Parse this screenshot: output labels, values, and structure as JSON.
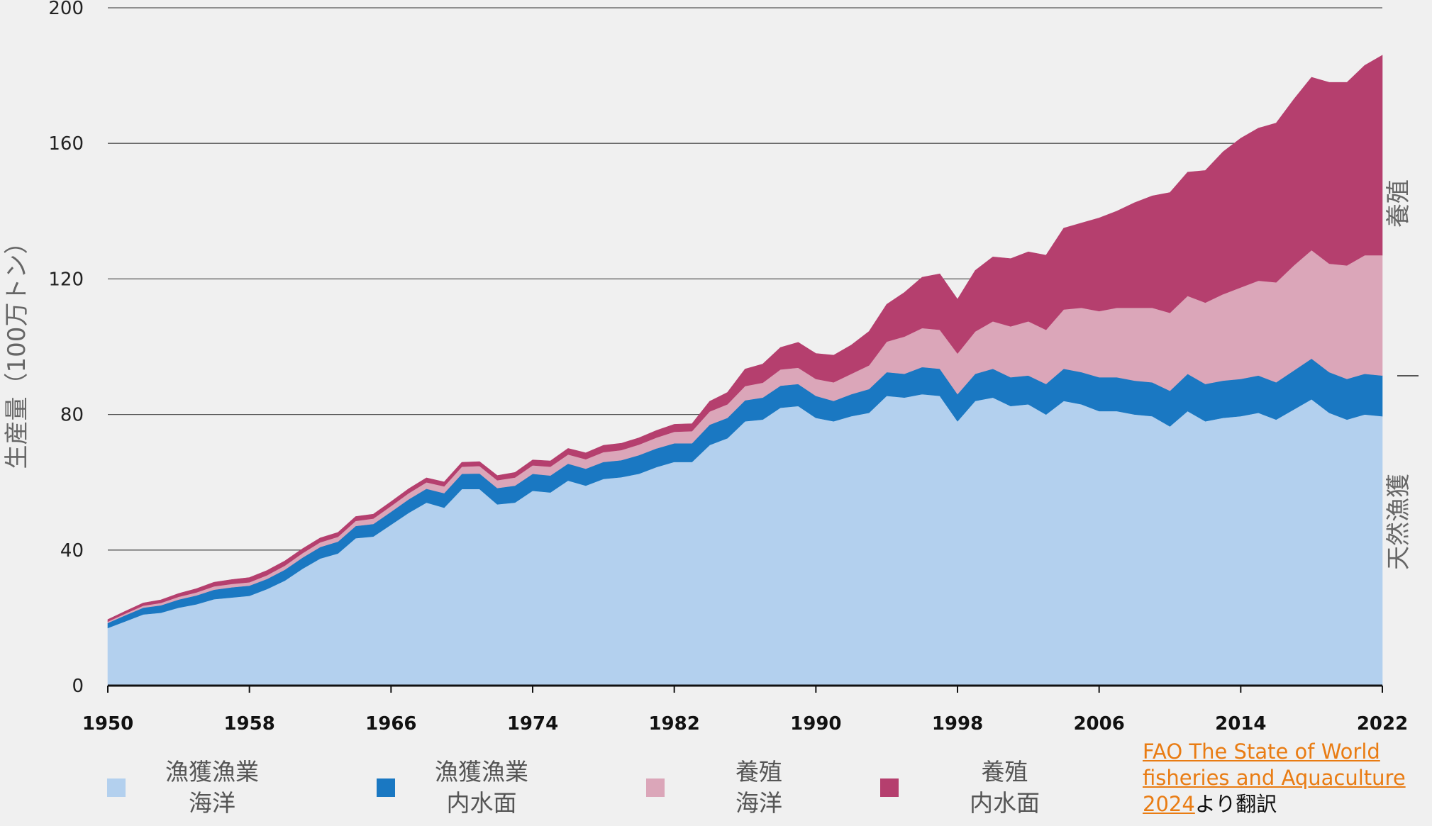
{
  "chart_data": {
    "type": "area",
    "stacked": true,
    "ylabel": "生産量（100万トン）",
    "ylim": [
      0,
      200
    ],
    "yticks": [
      "0",
      "40",
      "80",
      "120",
      "160",
      "200"
    ],
    "xlim": [
      1950,
      2022
    ],
    "xticks": [
      "1950",
      "1958",
      "1966",
      "1974",
      "1982",
      "1990",
      "1998",
      "2006",
      "2014",
      "2022"
    ],
    "grid": true,
    "side_labels": {
      "upper": "養殖",
      "lower": "天然漁獲"
    },
    "x": [
      1950,
      1951,
      1952,
      1953,
      1954,
      1955,
      1956,
      1957,
      1958,
      1959,
      1960,
      1961,
      1962,
      1963,
      1964,
      1965,
      1966,
      1967,
      1968,
      1969,
      1970,
      1971,
      1972,
      1973,
      1974,
      1975,
      1976,
      1977,
      1978,
      1979,
      1980,
      1981,
      1982,
      1983,
      1984,
      1985,
      1986,
      1987,
      1988,
      1989,
      1990,
      1991,
      1992,
      1993,
      1994,
      1995,
      1996,
      1997,
      1998,
      1999,
      2000,
      2001,
      2002,
      2003,
      2004,
      2005,
      2006,
      2007,
      2008,
      2009,
      2010,
      2011,
      2012,
      2013,
      2014,
      2015,
      2016,
      2017,
      2018,
      2019,
      2020,
      2021,
      2022
    ],
    "series": [
      {
        "name": "漁獲漁業 海洋",
        "color": "#b3d0ee",
        "values": [
          17,
          19,
          21,
          21.5,
          23,
          24,
          25.5,
          26,
          26.5,
          28.5,
          31,
          34.5,
          37.5,
          39,
          43.5,
          44,
          47.5,
          51,
          54,
          52.5,
          58,
          58,
          53.5,
          54,
          57.5,
          57,
          60.5,
          59,
          61,
          61.5,
          62.5,
          64.5,
          66,
          66,
          71,
          73,
          78,
          78.5,
          82,
          82.5,
          79,
          78,
          79.5,
          80.5,
          85.5,
          85,
          86,
          85.5,
          78,
          84,
          85,
          82.5,
          83,
          80,
          84,
          83,
          81,
          81,
          80,
          79.5,
          76.5,
          81,
          78,
          79,
          79.5,
          80.5,
          78.5,
          81.5,
          84.5,
          80.5,
          78.5,
          80,
          79.5
        ]
      },
      {
        "name": "漁獲漁業 内水面",
        "color": "#1a78c2",
        "values": [
          1.5,
          1.8,
          2,
          2.2,
          2.4,
          2.6,
          2.8,
          3,
          3,
          3,
          3.2,
          3.3,
          3.4,
          3.5,
          3.6,
          3.7,
          3.8,
          4,
          4.1,
          4.3,
          4.5,
          4.6,
          4.8,
          5,
          5,
          5,
          5,
          5,
          5,
          5,
          5.5,
          5.5,
          5.5,
          5.5,
          6,
          6,
          6.2,
          6.5,
          6.5,
          6.5,
          6.5,
          6,
          6.5,
          7,
          7,
          7,
          8,
          8,
          8,
          8,
          8.5,
          8.5,
          8.5,
          9,
          9.5,
          9.5,
          10,
          10,
          10,
          10,
          10.5,
          11,
          11,
          11,
          11,
          11,
          11,
          11.5,
          12,
          12,
          12,
          12,
          12
        ]
      },
      {
        "name": "養殖 海洋",
        "color": "#dba6b9",
        "values": [
          0.4,
          0.5,
          0.6,
          0.7,
          0.8,
          0.9,
          1,
          1,
          1,
          1.1,
          1.2,
          1.3,
          1.4,
          1.4,
          1.5,
          1.6,
          1.7,
          1.8,
          1.9,
          2,
          2.1,
          2.2,
          2.3,
          2.4,
          2.5,
          2.6,
          2.7,
          2.8,
          2.9,
          3,
          3.1,
          3.2,
          3.4,
          3.6,
          3.9,
          4,
          4.2,
          4.4,
          4.8,
          4.8,
          5,
          5.5,
          6,
          7,
          9,
          11,
          11.5,
          11.5,
          12,
          12.5,
          14,
          15,
          16,
          16,
          17.5,
          19,
          19.5,
          20.5,
          21.5,
          22,
          23,
          23,
          24,
          25.5,
          27,
          28,
          29.5,
          31,
          32,
          32,
          33.5,
          35,
          35.5
        ]
      },
      {
        "name": "養殖 内水面",
        "color": "#b53f6e",
        "values": [
          0.6,
          0.7,
          0.8,
          0.9,
          1,
          1.1,
          1.2,
          1.3,
          1.4,
          1.4,
          1.4,
          1.3,
          1.3,
          1.3,
          1.3,
          1.3,
          1.3,
          1.3,
          1.3,
          1.3,
          1.3,
          1.3,
          1.4,
          1.5,
          1.6,
          1.7,
          1.8,
          1.9,
          2,
          2,
          2,
          2.1,
          2.2,
          2.2,
          3,
          3.5,
          5,
          5.5,
          6.5,
          7.5,
          7.5,
          8,
          8.5,
          10,
          11,
          13,
          15,
          16.5,
          16,
          18,
          19,
          20,
          20.5,
          22,
          24,
          25,
          27.5,
          28.5,
          31,
          33,
          35.5,
          36.5,
          39,
          42,
          44,
          45,
          47,
          49,
          51,
          53.5,
          54,
          56,
          59
        ]
      }
    ]
  },
  "legend": [
    {
      "line1": "漁獲漁業",
      "line2": "海洋",
      "color": "#b3d0ee"
    },
    {
      "line1": "漁獲漁業",
      "line2": "内水面",
      "color": "#1a78c2"
    },
    {
      "line1": "養殖",
      "line2": "海洋",
      "color": "#dba6b9"
    },
    {
      "line1": "養殖",
      "line2": "内水面",
      "color": "#b53f6e"
    }
  ],
  "credit": {
    "link_text": "FAO The State of World fisheries and Aquaculture 2024",
    "suffix": "より翻訳"
  }
}
